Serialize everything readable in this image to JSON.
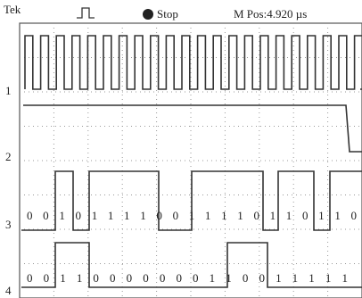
{
  "header": {
    "brand": "Tek",
    "status": "Stop",
    "position": "M Pos:4.920 µs"
  },
  "channels": [
    {
      "label": "1"
    },
    {
      "label": "2"
    },
    {
      "label": "3"
    },
    {
      "label": "4"
    }
  ],
  "bit_rows": [
    {
      "text": "0 0 1 0 1 1 1 1 0 0 1 1 1 1 0 1 1 0 1 1 0"
    },
    {
      "text": "0 0 1 1 0 0 0 0 0 0 0 1 1 0 0 1 1 1 1 1"
    }
  ]
}
